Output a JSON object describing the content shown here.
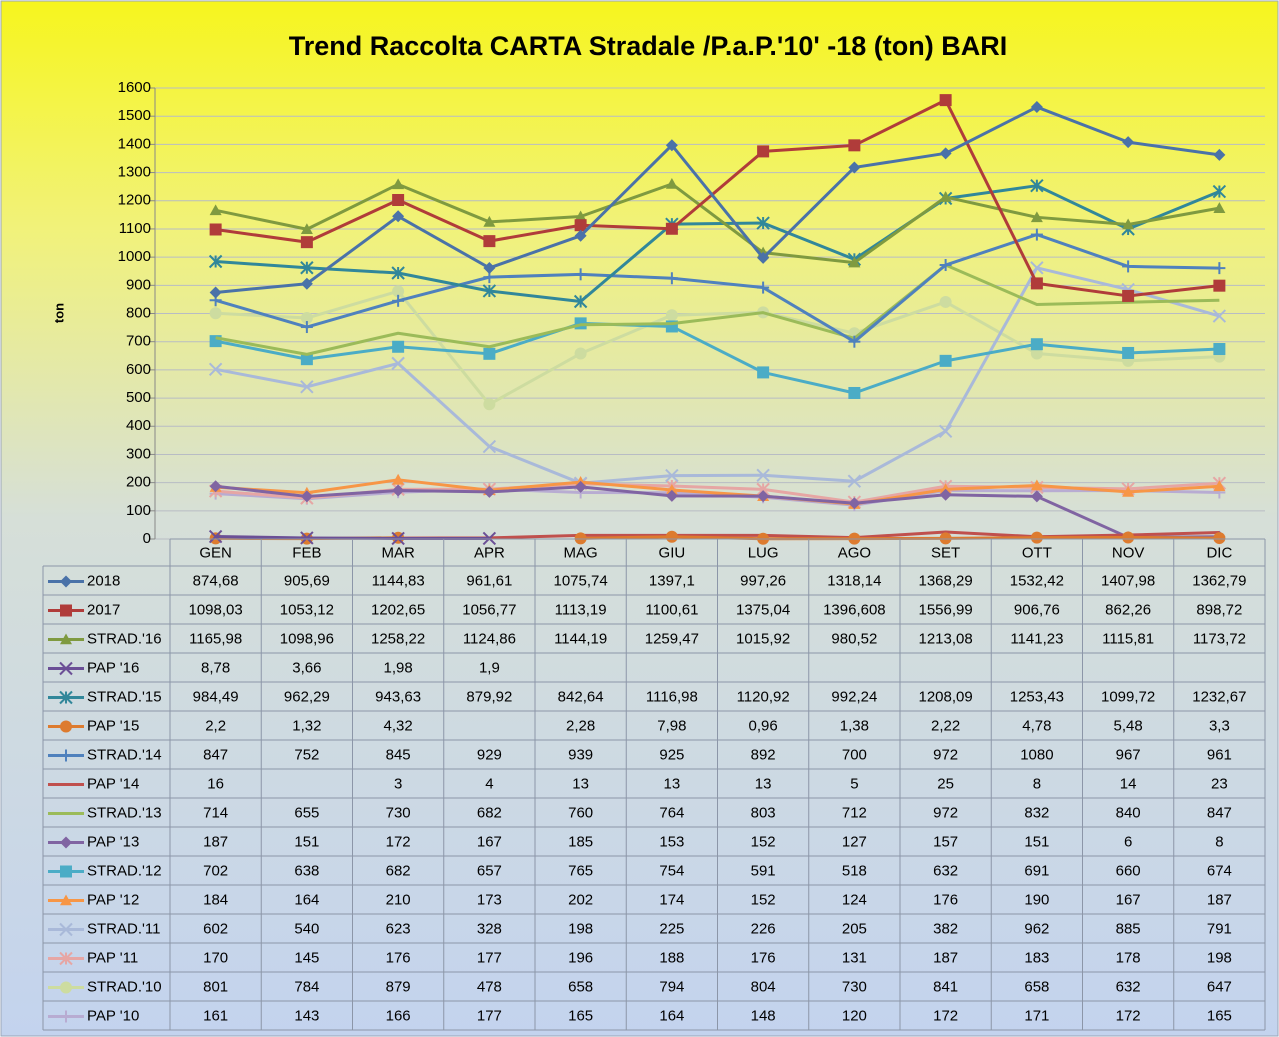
{
  "chart_data": {
    "type": "line",
    "title": "Trend Raccolta CARTA Stradale /P.a.P.'10' -18 (ton) BARI",
    "y_label": "ton",
    "categories": [
      "GEN",
      "FEB",
      "MAR",
      "APR",
      "MAG",
      "GIU",
      "LUG",
      "AGO",
      "SET",
      "OTT",
      "NOV",
      "DIC"
    ],
    "ylim": [
      0,
      1600
    ],
    "yticks": [
      0,
      100,
      200,
      300,
      400,
      500,
      600,
      700,
      800,
      900,
      1000,
      1100,
      1200,
      1300,
      1400,
      1500,
      1600
    ],
    "grid": true,
    "series": [
      {
        "name": "2018",
        "color": "#4a72a8",
        "marker": "diamond",
        "values": [
          874.68,
          905.69,
          1144.83,
          961.61,
          1075.74,
          1397.1,
          997.26,
          1318.14,
          1368.29,
          1532.42,
          1407.98,
          1362.79
        ],
        "value_labels": [
          "874,68",
          "905,69",
          "1144,83",
          "961,61",
          "1075,74",
          "1397,1",
          "997,26",
          "1318,14",
          "1368,29",
          "1532,42",
          "1407,98",
          "1362,79"
        ]
      },
      {
        "name": "2017",
        "color": "#b03c3a",
        "marker": "square",
        "values": [
          1098.03,
          1053.12,
          1202.65,
          1056.77,
          1113.19,
          1100.61,
          1375.04,
          1396.608,
          1556.99,
          906.76,
          862.26,
          898.72
        ],
        "value_labels": [
          "1098,03",
          "1053,12",
          "1202,65",
          "1056,77",
          "1113,19",
          "1100,61",
          "1375,04",
          "1396,608",
          "1556,99",
          "906,76",
          "862,26",
          "898,72"
        ]
      },
      {
        "name": "STRAD.'16",
        "color": "#7f9a40",
        "marker": "triangle",
        "values": [
          1165.98,
          1098.96,
          1258.22,
          1124.86,
          1144.19,
          1259.47,
          1015.92,
          980.52,
          1213.08,
          1141.23,
          1115.81,
          1173.72
        ],
        "value_labels": [
          "1165,98",
          "1098,96",
          "1258,22",
          "1124,86",
          "1144,19",
          "1259,47",
          "1015,92",
          "980,52",
          "1213,08",
          "1141,23",
          "1115,81",
          "1173,72"
        ]
      },
      {
        "name": "PAP '16",
        "color": "#6b4f96",
        "marker": "x",
        "values": [
          8.78,
          3.66,
          1.98,
          1.9,
          null,
          null,
          null,
          null,
          null,
          null,
          null,
          null
        ],
        "value_labels": [
          "8,78",
          "3,66",
          "1,98",
          "1,9",
          null,
          null,
          null,
          null,
          null,
          null,
          null,
          null
        ]
      },
      {
        "name": "STRAD.'15",
        "color": "#31879a",
        "marker": "asterisk",
        "values": [
          984.49,
          962.29,
          943.63,
          879.92,
          842.64,
          1116.98,
          1120.92,
          992.24,
          1208.09,
          1253.43,
          1099.72,
          1232.67
        ],
        "value_labels": [
          "984,49",
          "962,29",
          "943,63",
          "879,92",
          "842,64",
          "1116,98",
          "1120,92",
          "992,24",
          "1208,09",
          "1253,43",
          "1099,72",
          "1232,67"
        ]
      },
      {
        "name": "PAP '15",
        "color": "#dd7b2f",
        "marker": "circle",
        "values": [
          2.2,
          1.32,
          4.32,
          null,
          2.28,
          7.98,
          0.96,
          1.38,
          2.22,
          4.78,
          5.48,
          3.3
        ],
        "value_labels": [
          "2,2",
          "1,32",
          "4,32",
          null,
          "2,28",
          "7,98",
          "0,96",
          "1,38",
          "2,22",
          "4,78",
          "5,48",
          "3,3"
        ]
      },
      {
        "name": "STRAD.'14",
        "color": "#4f81bd",
        "marker": "plus",
        "values": [
          847,
          752,
          845,
          929,
          939,
          925,
          892,
          700,
          972,
          1080,
          967,
          961
        ]
      },
      {
        "name": "PAP '14",
        "color": "#c0504d",
        "marker": "none",
        "values": [
          16,
          null,
          3,
          4,
          13,
          13,
          13,
          5,
          25,
          8,
          14,
          23
        ]
      },
      {
        "name": "STRAD.'13",
        "color": "#9bbb59",
        "marker": "none",
        "values": [
          714,
          655,
          730,
          682,
          760,
          764,
          803,
          712,
          972,
          832,
          840,
          847
        ]
      },
      {
        "name": "PAP '13",
        "color": "#8064a2",
        "marker": "diamond",
        "values": [
          187,
          151,
          172,
          167,
          185,
          153,
          152,
          127,
          157,
          151,
          6,
          8
        ]
      },
      {
        "name": "STRAD.'12",
        "color": "#4bacc6",
        "marker": "square",
        "values": [
          702,
          638,
          682,
          657,
          765,
          754,
          591,
          518,
          632,
          691,
          660,
          674
        ]
      },
      {
        "name": "PAP '12",
        "color": "#f79646",
        "marker": "triangle",
        "values": [
          184,
          164,
          210,
          173,
          202,
          174,
          152,
          124,
          176,
          190,
          167,
          187
        ]
      },
      {
        "name": "STRAD.'11",
        "color": "#a9b9d9",
        "marker": "x",
        "values": [
          602,
          540,
          623,
          328,
          198,
          225,
          226,
          205,
          382,
          962,
          885,
          791
        ]
      },
      {
        "name": "PAP '11",
        "color": "#e6a6a4",
        "marker": "asterisk",
        "values": [
          170,
          145,
          176,
          177,
          196,
          188,
          176,
          131,
          187,
          183,
          178,
          198
        ]
      },
      {
        "name": "STRAD.'10",
        "color": "#cddca0",
        "marker": "circle",
        "values": [
          801,
          784,
          879,
          478,
          658,
          794,
          804,
          730,
          841,
          658,
          632,
          647
        ]
      },
      {
        "name": "PAP '10",
        "color": "#b8acd2",
        "marker": "plus",
        "values": [
          161,
          143,
          166,
          177,
          165,
          164,
          148,
          120,
          172,
          171,
          172,
          165
        ]
      }
    ]
  }
}
